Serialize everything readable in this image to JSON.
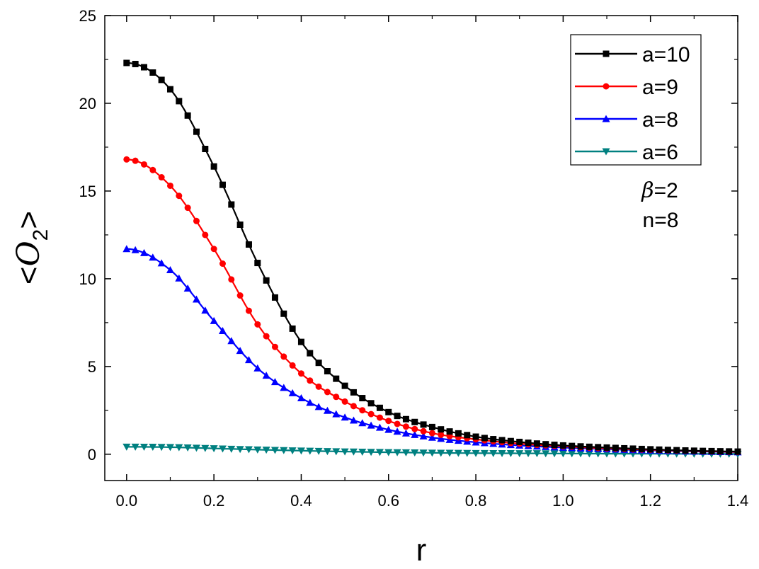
{
  "chart_data": {
    "type": "line",
    "title": "",
    "xlabel": "r",
    "ylabel": {
      "prefix": "<",
      "symbol": "O",
      "subscript": "2",
      "suffix": ">"
    },
    "xlim": [
      -0.05,
      1.4
    ],
    "ylim": [
      -1.5,
      25
    ],
    "x_ticks": [
      0.0,
      0.2,
      0.4,
      0.6,
      0.8,
      1.0,
      1.2,
      1.4
    ],
    "x_tick_labels": [
      "0.0",
      "0.2",
      "0.4",
      "0.6",
      "0.8",
      "1.0",
      "1.2",
      "1.4"
    ],
    "y_ticks": [
      0,
      5,
      10,
      15,
      20,
      25
    ],
    "y_tick_labels": [
      "0",
      "5",
      "10",
      "15",
      "20",
      "25"
    ],
    "grid": false,
    "legend_position": "top-right",
    "annotations": {
      "beta": {
        "symbol": "β",
        "text": "=2"
      },
      "n": "n=8"
    },
    "series": [
      {
        "name": "a=10",
        "color": "#000000",
        "marker": "square",
        "x": [
          0.0,
          0.1,
          0.2,
          0.3,
          0.4,
          0.5,
          0.6,
          0.7,
          0.8,
          0.9,
          1.0,
          1.1,
          1.2,
          1.3,
          1.4
        ],
        "y": [
          22.3,
          20.8,
          16.4,
          10.9,
          6.4,
          3.9,
          2.4,
          1.55,
          1.0,
          0.7,
          0.5,
          0.38,
          0.28,
          0.2,
          0.15
        ]
      },
      {
        "name": "a=9",
        "color": "#ff0000",
        "marker": "circle",
        "x": [
          0.0,
          0.1,
          0.2,
          0.3,
          0.4,
          0.5,
          0.6,
          0.7,
          0.8,
          0.9,
          1.0,
          1.1,
          1.2,
          1.3,
          1.4
        ],
        "y": [
          16.8,
          15.3,
          11.7,
          7.4,
          4.6,
          3.0,
          1.9,
          1.2,
          0.85,
          0.6,
          0.45,
          0.33,
          0.25,
          0.18,
          0.13
        ]
      },
      {
        "name": "a=8",
        "color": "#0000ff",
        "marker": "triangle-up",
        "x": [
          0.0,
          0.1,
          0.2,
          0.3,
          0.4,
          0.5,
          0.6,
          0.7,
          0.8,
          0.9,
          1.0,
          1.1,
          1.2,
          1.3,
          1.4
        ],
        "y": [
          11.7,
          10.5,
          7.6,
          4.9,
          3.2,
          2.1,
          1.4,
          0.95,
          0.68,
          0.5,
          0.38,
          0.29,
          0.22,
          0.16,
          0.12
        ]
      },
      {
        "name": "a=6",
        "color": "#008080",
        "marker": "triangle-down",
        "x": [
          0.0,
          0.1,
          0.2,
          0.3,
          0.4,
          0.5,
          0.6,
          0.7,
          0.8,
          0.9,
          1.0,
          1.1,
          1.2,
          1.3,
          1.4
        ],
        "y": [
          0.42,
          0.4,
          0.33,
          0.26,
          0.2,
          0.15,
          0.11,
          0.08,
          0.06,
          0.05,
          0.04,
          0.03,
          0.025,
          0.02,
          0.015
        ]
      }
    ]
  }
}
